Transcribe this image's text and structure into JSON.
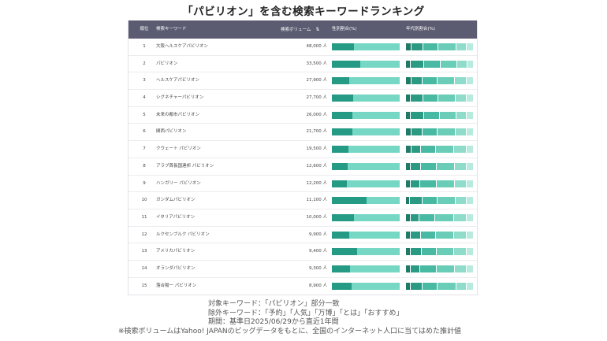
{
  "title": "「パビリオン」を含む検索キーワードランキング",
  "headers": {
    "rank": "順位",
    "keyword": "検索キーワード",
    "volume": "検索ボリューム",
    "gender": "性別割合(%)",
    "age": "年代別割合(%)"
  },
  "icons": {
    "sort": "sort-descending-icon"
  },
  "colors": {
    "header_bg": "#5b5b72",
    "male": "#259a84",
    "female": "#76d7c4",
    "age_palette": [
      "#1f7a68",
      "#2b9a83",
      "#48b9a2",
      "#69cdb8",
      "#8fdccb",
      "#b8eadf"
    ]
  },
  "rows": [
    {
      "rank": "1",
      "keyword": "大阪ヘルスケアパビリオン",
      "volume": "48,000 人",
      "male": 0.32,
      "age": [
        0.08,
        0.18,
        0.22,
        0.26,
        0.16,
        0.1
      ]
    },
    {
      "rank": "2",
      "keyword": "パビリオン",
      "volume": "33,500 人",
      "male": 0.42,
      "age": [
        0.07,
        0.2,
        0.24,
        0.25,
        0.15,
        0.09
      ]
    },
    {
      "rank": "3",
      "keyword": "ヘルスケアパビリオン",
      "volume": "27,900 人",
      "male": 0.26,
      "age": [
        0.08,
        0.16,
        0.22,
        0.26,
        0.18,
        0.1
      ]
    },
    {
      "rank": "4",
      "keyword": "シグネチャーパビリオン",
      "volume": "27,700 人",
      "male": 0.31,
      "age": [
        0.07,
        0.19,
        0.22,
        0.25,
        0.17,
        0.1
      ]
    },
    {
      "rank": "5",
      "keyword": "未来の都市パビリオン",
      "volume": "26,000 人",
      "male": 0.3,
      "age": [
        0.07,
        0.2,
        0.23,
        0.24,
        0.16,
        0.1
      ]
    },
    {
      "rank": "6",
      "keyword": "関西パビリオン",
      "volume": "21,700 人",
      "male": 0.3,
      "age": [
        0.08,
        0.17,
        0.22,
        0.26,
        0.17,
        0.1
      ]
    },
    {
      "rank": "7",
      "keyword": "クウェート パビリオン",
      "volume": "19,500 人",
      "male": 0.24,
      "age": [
        0.08,
        0.14,
        0.22,
        0.27,
        0.19,
        0.1
      ]
    },
    {
      "rank": "8",
      "keyword": "アラブ首長国連邦 パビリオン",
      "volume": "12,600 人",
      "male": 0.23,
      "age": [
        0.07,
        0.15,
        0.23,
        0.27,
        0.18,
        0.1
      ]
    },
    {
      "rank": "9",
      "keyword": "ハンガリー パビリオン",
      "volume": "12,200 人",
      "male": 0.22,
      "age": [
        0.07,
        0.14,
        0.24,
        0.27,
        0.18,
        0.1
      ]
    },
    {
      "rank": "10",
      "keyword": "ガンダムパビリオン",
      "volume": "11,100 人",
      "male": 0.51,
      "age": [
        0.06,
        0.18,
        0.22,
        0.27,
        0.17,
        0.1
      ]
    },
    {
      "rank": "11",
      "keyword": "イタリアパビリオン",
      "volume": "10,000 人",
      "male": 0.32,
      "age": [
        0.07,
        0.13,
        0.23,
        0.28,
        0.19,
        0.1
      ]
    },
    {
      "rank": "12",
      "keyword": "ルクセンブルク パビリオン",
      "volume": "9,900 人",
      "male": 0.25,
      "age": [
        0.07,
        0.15,
        0.22,
        0.27,
        0.19,
        0.1
      ]
    },
    {
      "rank": "13",
      "keyword": "アメリカパビリオン",
      "volume": "9,400 人",
      "male": 0.37,
      "age": [
        0.07,
        0.16,
        0.22,
        0.26,
        0.19,
        0.1
      ]
    },
    {
      "rank": "14",
      "keyword": "オランダパビリオン",
      "volume": "9,300 人",
      "male": 0.27,
      "age": [
        0.07,
        0.14,
        0.24,
        0.27,
        0.18,
        0.1
      ]
    },
    {
      "rank": "15",
      "keyword": "落合陽一 パビリオン",
      "volume": "8,900 人",
      "male": 0.29,
      "age": [
        0.07,
        0.17,
        0.23,
        0.27,
        0.16,
        0.1
      ]
    }
  ],
  "captions": [
    "対象キーワード：「パビリオン」部分一致",
    "除外キーワード：「予約」「人気」「万博」「とは」「おすすめ」",
    "期間：基準日2025/06/29から直近1年間",
    "※検索ボリュームはYahoo! JAPANのビッグデータをもとに、全国のインターネット人口に当てはめた推計値"
  ]
}
